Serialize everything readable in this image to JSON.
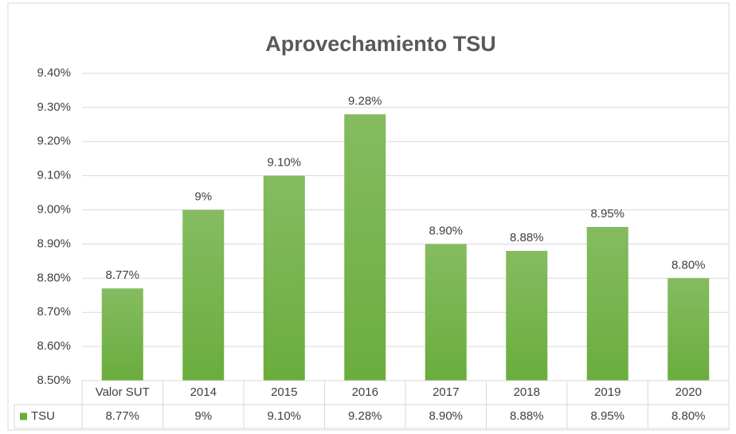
{
  "chart_data": {
    "type": "bar",
    "title": "Aprovechamiento TSU",
    "categories": [
      "Valor SUT",
      "2014",
      "2015",
      "2016",
      "2017",
      "2018",
      "2019",
      "2020"
    ],
    "series": [
      {
        "name": "TSU",
        "color": "#6aad3d",
        "values": [
          8.77,
          9,
          9.1,
          9.28,
          8.9,
          8.88,
          8.95,
          8.8
        ],
        "value_labels": [
          "8.77%",
          "9%",
          "9.10%",
          "9.28%",
          "8.90%",
          "8.88%",
          "8.95%",
          "8.80%"
        ]
      }
    ],
    "ylim": [
      8.5,
      9.4
    ],
    "yticks": [
      {
        "value": 8.5,
        "label": "8.50%"
      },
      {
        "value": 8.6,
        "label": "8.60%"
      },
      {
        "value": 8.7,
        "label": "8.70%"
      },
      {
        "value": 8.8,
        "label": "8.80%"
      },
      {
        "value": 8.9,
        "label": "8.90%"
      },
      {
        "value": 9.0,
        "label": "9.00%"
      },
      {
        "value": 9.1,
        "label": "9.10%"
      },
      {
        "value": 9.2,
        "label": "9.20%"
      },
      {
        "value": 9.3,
        "label": "9.30%"
      },
      {
        "value": 9.4,
        "label": "9.40%"
      }
    ],
    "grid": true,
    "data_table": true
  }
}
